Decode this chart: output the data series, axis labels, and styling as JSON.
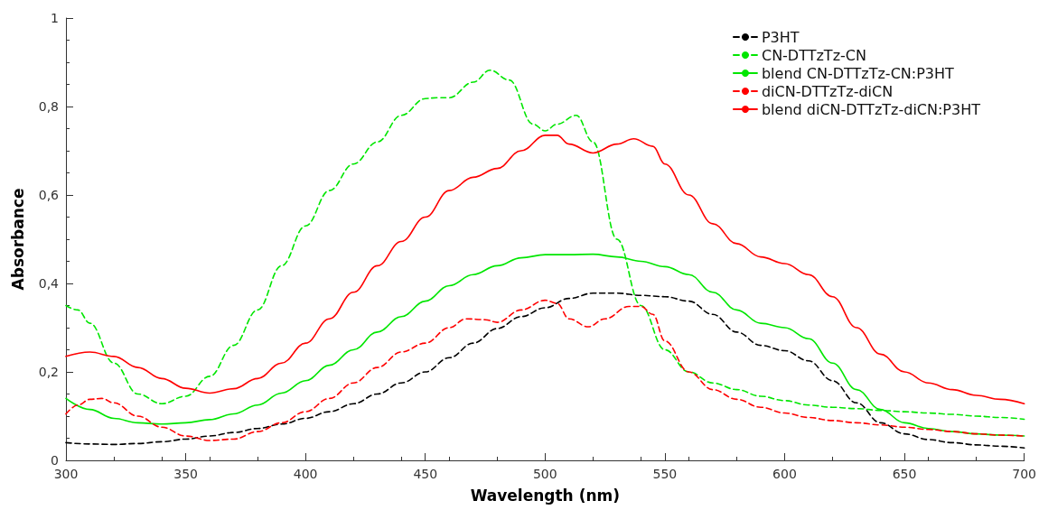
{
  "chart_data": {
    "type": "line",
    "xlabel": "Wavelength (nm)",
    "ylabel": "Absorbance",
    "xlim": [
      300,
      700
    ],
    "xticks": [
      300,
      350,
      400,
      450,
      500,
      550,
      600,
      650,
      700
    ],
    "ylim": [
      0,
      1
    ],
    "yticks": [
      0,
      {
        "value": 0.2,
        "label": "0,2"
      },
      {
        "value": 0.4,
        "label": "0,4"
      },
      {
        "value": 0.6,
        "label": "0,6"
      },
      {
        "value": 0.8,
        "label": "0,8"
      },
      1
    ],
    "grid": false,
    "legend": "top right",
    "marker": "none",
    "series": [
      {
        "name": "P3HT",
        "color": "#000000",
        "line_style": "dashed",
        "x": [
          300,
          310,
          320,
          330,
          340,
          350,
          360,
          370,
          380,
          390,
          400,
          410,
          420,
          430,
          440,
          450,
          460,
          470,
          480,
          490,
          500,
          510,
          520,
          530,
          540,
          550,
          560,
          570,
          580,
          590,
          600,
          610,
          620,
          630,
          640,
          650,
          660,
          670,
          680,
          690,
          700
        ],
        "values": [
          0.04,
          0.037,
          0.036,
          0.038,
          0.042,
          0.048,
          0.055,
          0.063,
          0.072,
          0.082,
          0.095,
          0.11,
          0.128,
          0.15,
          0.175,
          0.2,
          0.232,
          0.265,
          0.298,
          0.325,
          0.345,
          0.366,
          0.378,
          0.378,
          0.373,
          0.37,
          0.36,
          0.33,
          0.29,
          0.26,
          0.248,
          0.225,
          0.18,
          0.13,
          0.085,
          0.06,
          0.047,
          0.04,
          0.035,
          0.032,
          0.028
        ]
      },
      {
        "name": "CN-DTTzTz-CN",
        "color": "#00e600",
        "line_style": "dashed",
        "x": [
          300,
          305,
          310,
          320,
          330,
          340,
          350,
          360,
          370,
          380,
          390,
          400,
          410,
          420,
          430,
          440,
          450,
          455,
          460,
          470,
          477,
          485,
          495,
          500,
          505,
          513,
          520,
          530,
          540,
          550,
          560,
          570,
          580,
          590,
          600,
          610,
          620,
          630,
          640,
          650,
          660,
          670,
          680,
          690,
          700
        ],
        "values": [
          0.35,
          0.34,
          0.31,
          0.22,
          0.15,
          0.128,
          0.145,
          0.19,
          0.26,
          0.34,
          0.44,
          0.53,
          0.61,
          0.67,
          0.72,
          0.78,
          0.818,
          0.82,
          0.82,
          0.855,
          0.882,
          0.86,
          0.76,
          0.745,
          0.76,
          0.78,
          0.72,
          0.5,
          0.35,
          0.25,
          0.2,
          0.175,
          0.16,
          0.145,
          0.135,
          0.125,
          0.12,
          0.117,
          0.113,
          0.11,
          0.107,
          0.104,
          0.1,
          0.097,
          0.093
        ]
      },
      {
        "name": "blend CN-DTTzTz-CN:P3HT",
        "color": "#00e600",
        "line_style": "solid",
        "x": [
          300,
          310,
          320,
          330,
          340,
          350,
          360,
          370,
          380,
          390,
          400,
          410,
          420,
          430,
          440,
          450,
          460,
          470,
          480,
          490,
          500,
          510,
          520,
          530,
          540,
          550,
          560,
          570,
          580,
          590,
          600,
          610,
          620,
          630,
          640,
          650,
          660,
          670,
          680,
          690,
          700
        ],
        "values": [
          0.14,
          0.115,
          0.095,
          0.085,
          0.082,
          0.085,
          0.092,
          0.105,
          0.125,
          0.152,
          0.18,
          0.215,
          0.25,
          0.29,
          0.325,
          0.36,
          0.395,
          0.42,
          0.44,
          0.458,
          0.465,
          0.465,
          0.466,
          0.46,
          0.45,
          0.438,
          0.42,
          0.38,
          0.34,
          0.31,
          0.3,
          0.275,
          0.22,
          0.16,
          0.115,
          0.085,
          0.072,
          0.065,
          0.06,
          0.057,
          0.055
        ]
      },
      {
        "name": "diCN-DTTzTz-diCN",
        "color": "#ff0000",
        "line_style": "dashed",
        "x": [
          300,
          305,
          310,
          315,
          320,
          330,
          340,
          350,
          360,
          370,
          380,
          390,
          400,
          410,
          420,
          430,
          440,
          450,
          460,
          467,
          475,
          480,
          490,
          500,
          505,
          510,
          518,
          525,
          535,
          540,
          545,
          550,
          560,
          570,
          580,
          590,
          600,
          610,
          620,
          630,
          640,
          650,
          660,
          670,
          680,
          690,
          700
        ],
        "values": [
          0.105,
          0.125,
          0.138,
          0.14,
          0.13,
          0.1,
          0.075,
          0.055,
          0.045,
          0.048,
          0.065,
          0.085,
          0.11,
          0.14,
          0.175,
          0.21,
          0.245,
          0.265,
          0.3,
          0.32,
          0.318,
          0.312,
          0.34,
          0.362,
          0.355,
          0.32,
          0.302,
          0.32,
          0.348,
          0.348,
          0.33,
          0.27,
          0.2,
          0.16,
          0.138,
          0.12,
          0.107,
          0.097,
          0.09,
          0.085,
          0.08,
          0.075,
          0.07,
          0.065,
          0.06,
          0.057,
          0.055
        ]
      },
      {
        "name": "blend diCN-DTTzTz-diCN:P3HT",
        "color": "#ff0000",
        "line_style": "solid",
        "x": [
          300,
          310,
          320,
          330,
          340,
          350,
          360,
          370,
          380,
          390,
          400,
          410,
          420,
          430,
          440,
          450,
          460,
          470,
          480,
          490,
          500,
          505,
          510,
          520,
          530,
          537,
          545,
          550,
          560,
          570,
          580,
          590,
          600,
          610,
          620,
          630,
          640,
          650,
          660,
          670,
          680,
          690,
          700
        ],
        "values": [
          0.235,
          0.245,
          0.235,
          0.21,
          0.185,
          0.163,
          0.152,
          0.162,
          0.185,
          0.22,
          0.265,
          0.32,
          0.38,
          0.44,
          0.495,
          0.55,
          0.61,
          0.64,
          0.66,
          0.7,
          0.735,
          0.735,
          0.715,
          0.695,
          0.715,
          0.727,
          0.71,
          0.67,
          0.6,
          0.535,
          0.49,
          0.46,
          0.445,
          0.42,
          0.37,
          0.3,
          0.24,
          0.2,
          0.175,
          0.16,
          0.147,
          0.138,
          0.128
        ]
      }
    ]
  }
}
